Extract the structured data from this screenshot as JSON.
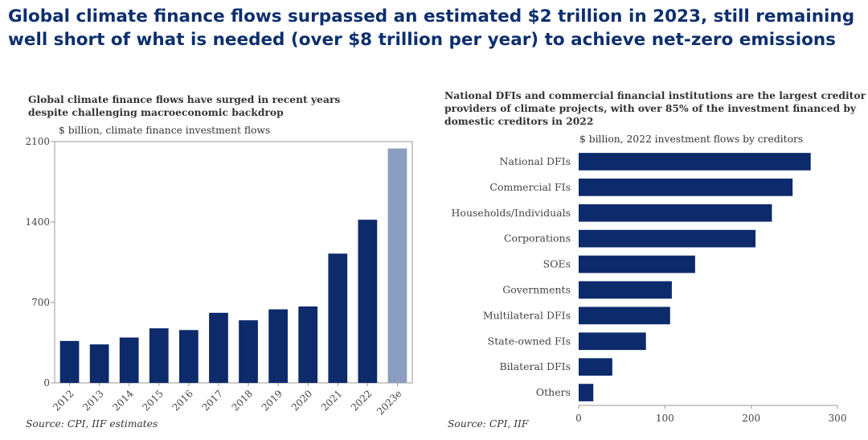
{
  "headline": "Global climate finance flows surpassed an estimated $2 trillion in 2023, still remaining well short of what is needed (over $8 trillion per year) to achieve net-zero emissions",
  "colors": {
    "bar": "#0d2a6b",
    "bar_estimate": "#8a9fc0",
    "headline": "#0d2f6e"
  },
  "left_panel": {
    "title": "Global climate finance flows have surged in recent years despite challenging macroeconomic backdrop",
    "unit": "$ billion, climate finance investment flows",
    "source": "Source: CPI, IIF estimates"
  },
  "right_panel": {
    "title": "National DFIs and commercial financial institutions are the largest creditor providers of climate projects, with over 85% of the investment financed by domestic creditors in 2022",
    "unit": "$ billion, 2022 investment flows by creditors",
    "source": "Source: CPI, IIF"
  },
  "chart_data": [
    {
      "type": "bar",
      "orientation": "vertical",
      "title": "Global climate finance flows have surged in recent years despite challenging macroeconomic backdrop",
      "ylabel": "$ billion, climate finance investment flows",
      "categories": [
        "2012",
        "2013",
        "2014",
        "2015",
        "2016",
        "2017",
        "2018",
        "2019",
        "2020",
        "2021",
        "2022",
        "2023e"
      ],
      "values": [
        365,
        335,
        395,
        475,
        460,
        610,
        545,
        640,
        665,
        1125,
        1420,
        2040
      ],
      "estimate_categories": [
        "2023e"
      ],
      "ylim": [
        0,
        2100
      ],
      "yticks": [
        0,
        700,
        1400,
        2100
      ],
      "grid": false,
      "legend": "none"
    },
    {
      "type": "bar",
      "orientation": "horizontal",
      "title": "National DFIs and commercial financial institutions are the largest creditor providers of climate projects, with over 85% of the investment financed by domestic creditors in 2022",
      "xlabel": "$ billion, 2022 investment flows by creditors",
      "categories": [
        "National DFIs",
        "Commercial FIs",
        "Households/Individuals",
        "Corporations",
        "SOEs",
        "Governments",
        "Multilateral DFIs",
        "State-owned FIs",
        "Bilateral DFIs",
        "Others"
      ],
      "values": [
        269,
        248,
        224,
        205,
        135,
        108,
        106,
        78,
        39,
        17
      ],
      "xlim": [
        0,
        300
      ],
      "xticks": [
        0,
        100,
        200,
        300
      ],
      "grid": false,
      "legend": "none"
    }
  ]
}
